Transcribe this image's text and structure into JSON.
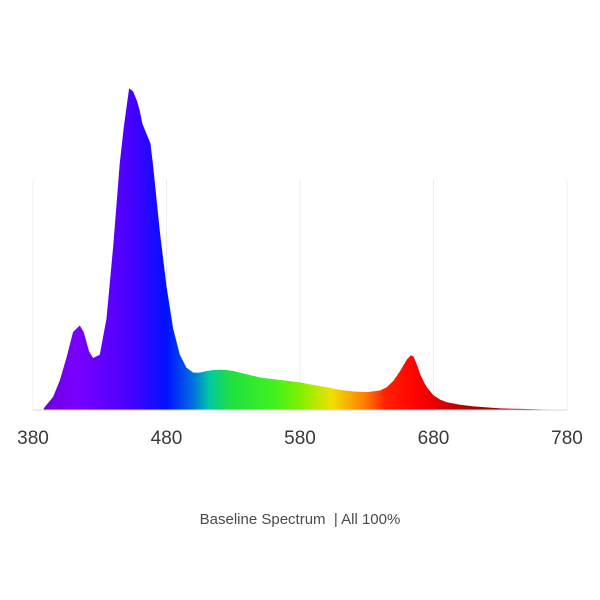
{
  "chart_data": {
    "type": "area",
    "title": "Baseline Spectrum  | All 100%",
    "xlabel": "",
    "ylabel": "",
    "xlim": [
      380,
      780
    ],
    "ylim": [
      0,
      1
    ],
    "x_ticks": [
      "380",
      "480",
      "580",
      "680",
      "780"
    ],
    "grid": true,
    "series": [
      {
        "x": [
          388,
          395,
          400,
          405,
          410,
          415,
          418,
          420,
          422,
          425,
          430,
          435,
          440,
          445,
          448,
          450,
          452,
          455,
          458,
          460,
          462,
          465,
          468,
          470,
          475,
          480,
          485,
          490,
          495,
          500,
          505,
          510,
          515,
          520,
          525,
          530,
          535,
          540,
          550,
          560,
          570,
          580,
          590,
          600,
          610,
          620,
          630,
          640,
          645,
          650,
          655,
          660,
          663,
          665,
          668,
          670,
          673,
          675,
          680,
          685,
          690,
          700,
          710,
          720,
          730,
          740,
          750,
          760,
          775
        ],
        "y": [
          0.005,
          0.04,
          0.09,
          0.16,
          0.24,
          0.26,
          0.24,
          0.21,
          0.18,
          0.16,
          0.17,
          0.28,
          0.5,
          0.76,
          0.87,
          0.93,
          0.99,
          0.98,
          0.95,
          0.92,
          0.88,
          0.85,
          0.82,
          0.75,
          0.55,
          0.38,
          0.25,
          0.17,
          0.13,
          0.115,
          0.115,
          0.12,
          0.123,
          0.124,
          0.123,
          0.12,
          0.115,
          0.11,
          0.1,
          0.095,
          0.09,
          0.085,
          0.077,
          0.07,
          0.062,
          0.057,
          0.055,
          0.06,
          0.07,
          0.09,
          0.12,
          0.155,
          0.168,
          0.165,
          0.135,
          0.11,
          0.085,
          0.07,
          0.045,
          0.032,
          0.024,
          0.016,
          0.011,
          0.008,
          0.005,
          0.004,
          0.003,
          0.002,
          0.001
        ]
      }
    ],
    "colors": {
      "violet": "#7a00ff",
      "blue": "#1a10ff",
      "cyan": "#00c8b4",
      "green": "#3cf028",
      "yellow": "#f0e000",
      "orange": "#ff8000",
      "red": "#ff0000",
      "darkred": "#9a0000"
    }
  }
}
